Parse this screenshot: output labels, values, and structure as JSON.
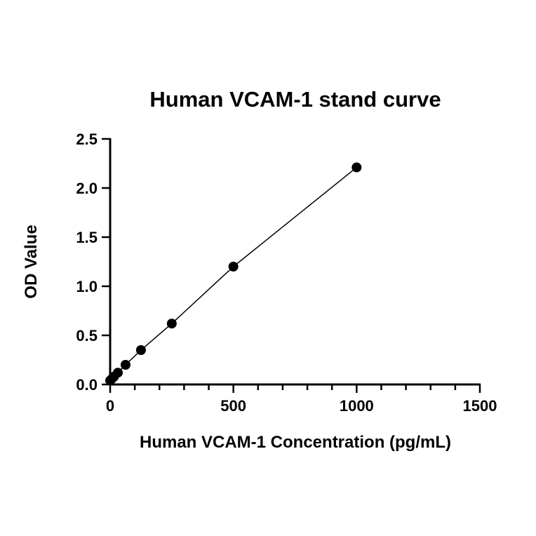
{
  "chart_data": {
    "type": "scatter",
    "title": "Human VCAM-1 stand curve",
    "xlabel": "Human VCAM-1 Concentration (pg/mL)",
    "ylabel": "OD Value",
    "xlim": [
      0,
      1500
    ],
    "ylim": [
      0,
      2.5
    ],
    "xticks": [
      0,
      500,
      1000,
      1500
    ],
    "xtick_labels": [
      "0",
      "500",
      "1000",
      "1500"
    ],
    "xminor_step": 100,
    "yticks": [
      0,
      0.5,
      1,
      1.5,
      2,
      2.5
    ],
    "ytick_labels": [
      "0.0",
      "0.5",
      "1.0",
      "1.5",
      "2.0",
      "2.5"
    ],
    "grid": false,
    "fit_line": true,
    "x": [
      0,
      7.8,
      15.6,
      31.25,
      62.5,
      125,
      250,
      500,
      1000
    ],
    "y": [
      0.04,
      0.06,
      0.08,
      0.12,
      0.2,
      0.35,
      0.62,
      1.2,
      2.21
    ],
    "color": "#000000"
  }
}
